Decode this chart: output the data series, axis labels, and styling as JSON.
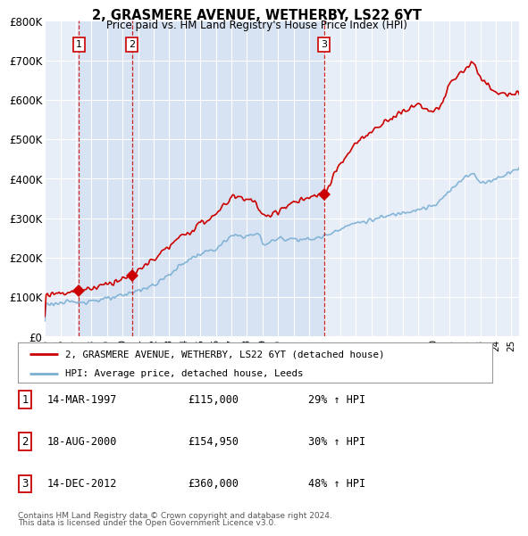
{
  "title": "2, GRASMERE AVENUE, WETHERBY, LS22 6YT",
  "subtitle": "Price paid vs. HM Land Registry's House Price Index (HPI)",
  "ylabel_ticks": [
    "£0",
    "£100K",
    "£200K",
    "£300K",
    "£400K",
    "£500K",
    "£600K",
    "£700K",
    "£800K"
  ],
  "ylim": [
    0,
    800000
  ],
  "xlim_start": 1995.0,
  "xlim_end": 2025.5,
  "sale_dates": [
    1997.2,
    2000.6,
    2012.95
  ],
  "sale_prices": [
    115000,
    154950,
    360000
  ],
  "sale_labels": [
    "1",
    "2",
    "3"
  ],
  "sale_info": [
    {
      "label": "1",
      "date": "14-MAR-1997",
      "price": "£115,000",
      "hpi": "29% ↑ HPI"
    },
    {
      "label": "2",
      "date": "18-AUG-2000",
      "price": "£154,950",
      "hpi": "30% ↑ HPI"
    },
    {
      "label": "3",
      "date": "14-DEC-2012",
      "price": "£360,000",
      "hpi": "48% ↑ HPI"
    }
  ],
  "legend_line1": "2, GRASMERE AVENUE, WETHERBY, LS22 6YT (detached house)",
  "legend_line2": "HPI: Average price, detached house, Leeds",
  "footnote1": "Contains HM Land Registry data © Crown copyright and database right 2024.",
  "footnote2": "This data is licensed under the Open Government Licence v3.0.",
  "red_color": "#cc0000",
  "blue_color": "#7aafd4",
  "shade_color": "#d0dff0",
  "bg_color": "#e8eef7",
  "grid_color": "#ffffff",
  "vline_color": "#cc0000"
}
